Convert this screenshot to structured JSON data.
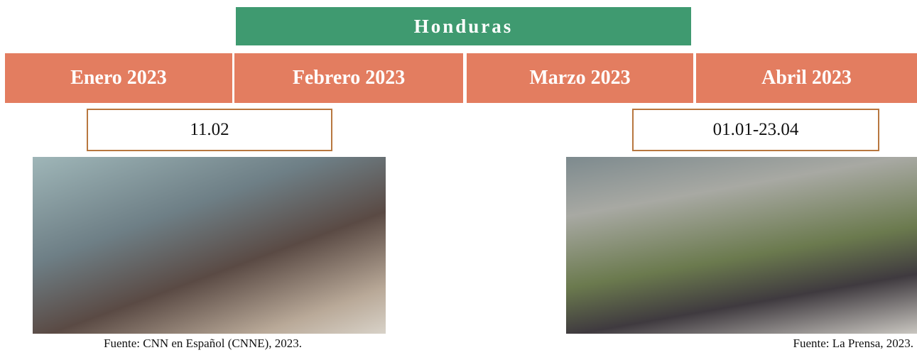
{
  "header": {
    "title": "Honduras"
  },
  "months": [
    "Enero 2023",
    "Febrero 2023",
    "Marzo 2023",
    "Abril 2023"
  ],
  "events": [
    {
      "date": "11.02",
      "source": "Fuente: CNN en Español (CNNE), 2023."
    },
    {
      "date": "01.01-23.04",
      "source": "Fuente: La Prensa, 2023."
    }
  ]
}
